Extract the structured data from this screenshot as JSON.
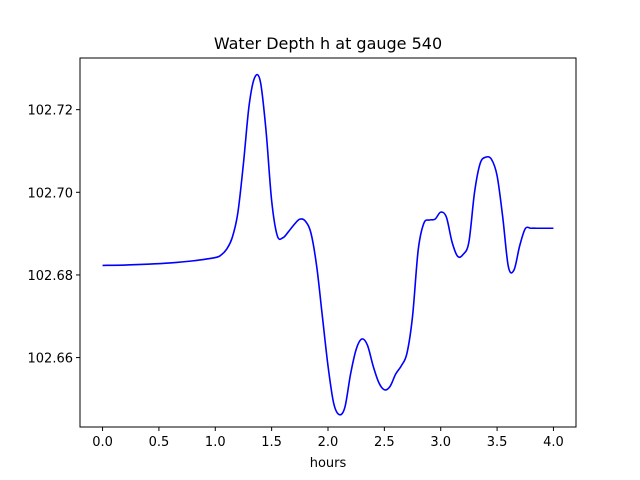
{
  "chart_data": {
    "type": "line",
    "title": "Water Depth h at gauge 540",
    "xlabel": "hours",
    "ylabel": "",
    "xlim": [
      -0.2,
      4.2
    ],
    "ylim": [
      102.6432,
      102.7325
    ],
    "xticks": [
      0.0,
      0.5,
      1.0,
      1.5,
      2.0,
      2.5,
      3.0,
      3.5,
      4.0
    ],
    "xtick_labels": [
      "0.0",
      "0.5",
      "1.0",
      "1.5",
      "2.0",
      "2.5",
      "3.0",
      "3.5",
      "4.0"
    ],
    "yticks": [
      102.66,
      102.68,
      102.7,
      102.72
    ],
    "ytick_labels": [
      "102.66",
      "102.68",
      "102.70",
      "102.72"
    ],
    "grid": false,
    "color": "#0000ff",
    "series": [
      {
        "x": [
          0.0,
          0.2,
          0.4,
          0.6,
          0.8,
          1.0,
          1.05,
          1.1,
          1.15,
          1.2,
          1.25,
          1.3,
          1.35,
          1.4,
          1.45,
          1.5,
          1.55,
          1.6,
          1.65,
          1.7,
          1.75,
          1.8,
          1.85,
          1.9,
          1.95,
          2.0,
          2.05,
          2.1,
          2.15,
          2.2,
          2.25,
          2.3,
          2.35,
          2.4,
          2.45,
          2.5,
          2.55,
          2.6,
          2.65,
          2.7,
          2.75,
          2.8,
          2.85,
          2.9,
          2.95,
          3.0,
          3.05,
          3.1,
          3.15,
          3.2,
          3.25,
          3.3,
          3.35,
          3.4,
          3.45,
          3.5,
          3.55,
          3.6,
          3.65,
          3.7,
          3.75,
          3.8,
          3.85,
          3.9,
          3.95,
          4.0
        ],
        "y": [
          102.6823,
          102.6824,
          102.6826,
          102.6829,
          102.6834,
          102.6842,
          102.6848,
          102.6862,
          102.689,
          102.695,
          102.707,
          102.721,
          102.7278,
          102.7268,
          102.715,
          102.698,
          102.6895,
          102.689,
          102.6905,
          102.6922,
          102.6935,
          102.693,
          102.69,
          102.682,
          102.67,
          102.658,
          102.649,
          102.6462,
          102.648,
          102.656,
          102.662,
          102.6645,
          102.663,
          102.658,
          102.654,
          102.6522,
          102.653,
          102.656,
          102.658,
          102.661,
          102.67,
          102.686,
          102.6925,
          102.6933,
          102.6935,
          102.6952,
          102.694,
          102.688,
          102.6845,
          102.685,
          102.688,
          102.7,
          102.707,
          102.7085,
          102.708,
          102.704,
          102.694,
          102.682,
          102.6812,
          102.687,
          102.6912,
          102.6913,
          102.6913,
          102.6913,
          102.6913,
          102.6913
        ]
      }
    ]
  }
}
